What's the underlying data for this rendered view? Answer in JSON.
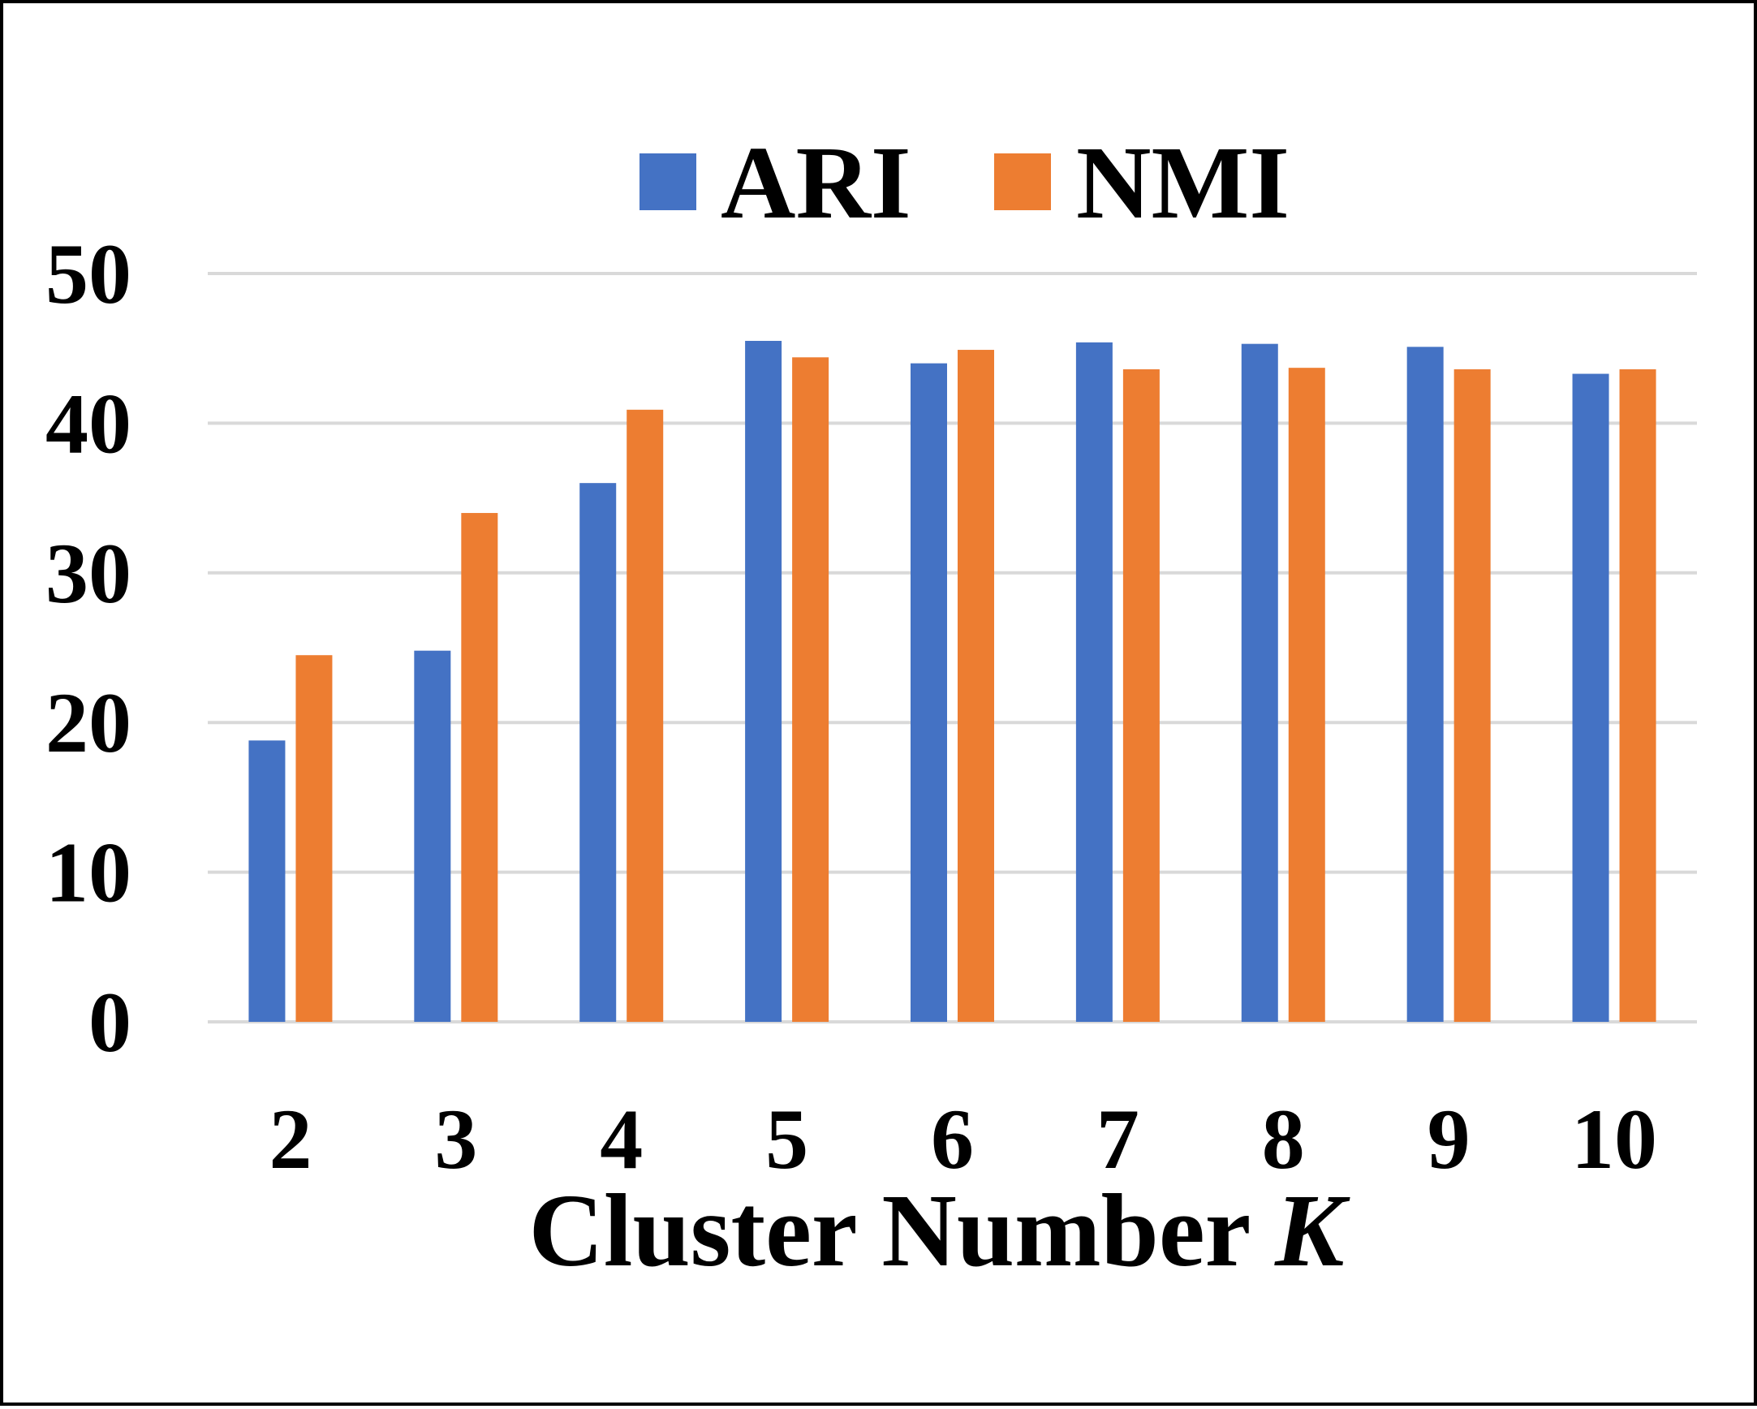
{
  "chart_data": {
    "type": "bar",
    "categories": [
      "2",
      "3",
      "4",
      "5",
      "6",
      "7",
      "8",
      "9",
      "10"
    ],
    "series": [
      {
        "name": "ARI",
        "color": "#4472C4",
        "values": [
          18.8,
          24.8,
          36.0,
          45.5,
          44.0,
          45.4,
          45.3,
          45.1,
          43.3
        ]
      },
      {
        "name": "NMI",
        "color": "#ED7D31",
        "values": [
          24.5,
          34.0,
          40.9,
          44.4,
          44.9,
          43.6,
          43.7,
          43.6,
          43.6
        ]
      }
    ],
    "title": "",
    "xlabel": "Cluster Number",
    "xlabel_var": "K",
    "ylabel": "",
    "ylim": [
      0,
      50
    ],
    "yticks": [
      0,
      10,
      20,
      30,
      40,
      50
    ],
    "grid": true,
    "grid_color": "#D9D9D9",
    "legend_position": "top-center"
  }
}
